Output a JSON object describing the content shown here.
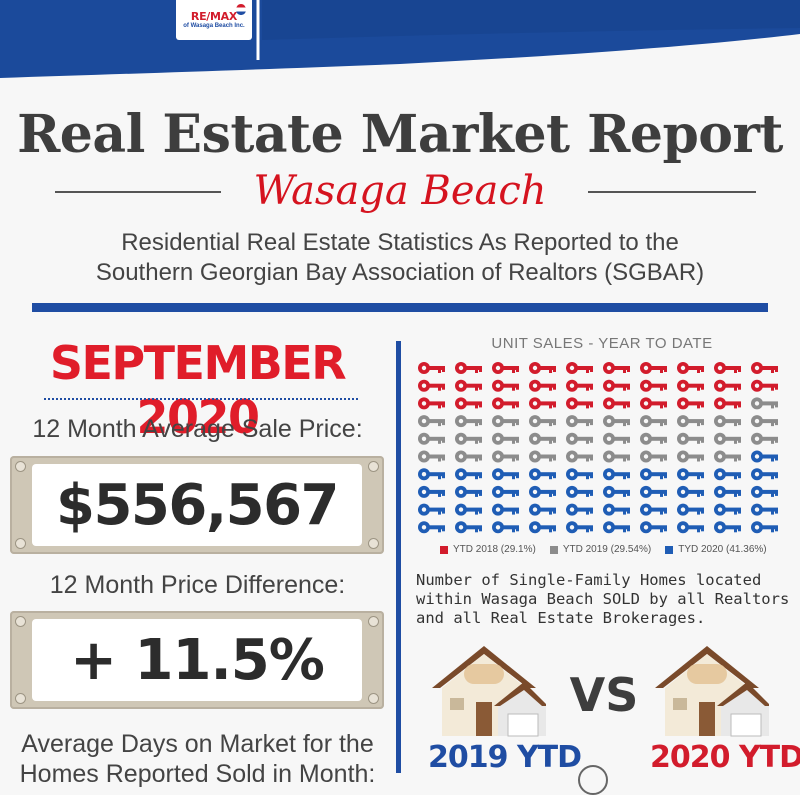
{
  "brand": {
    "logo_main": "RE/MAX",
    "logo_sub": "of Wasaga Beach Inc."
  },
  "header": {
    "title": "Real Estate Market Report",
    "subtitle": "Wasaga Beach",
    "description_line1": "Residential Real Estate Statistics As Reported to the",
    "description_line2": "Southern Georgian Bay Association of Realtors (SGBAR)"
  },
  "left": {
    "month": "SEPTEMBER 2020",
    "avg_price_label": "12 Month Average Sale Price:",
    "avg_price_value": "$556,567",
    "diff_label": "12 Month Price Difference:",
    "diff_value": "+ 11.5%",
    "days_label_line1": "Average Days on Market for the",
    "days_label_line2": "Homes Reported Sold in Month:"
  },
  "right": {
    "unit_sales_title": "UNIT SALES - YEAR TO DATE",
    "legend": [
      {
        "label": "YTD 2018 (29.1%)",
        "color": "#d21c2c"
      },
      {
        "label": "YTD 2019 (29.54%)",
        "color": "#8c8c8c"
      },
      {
        "label": "TYD 2020 (41.36%)",
        "color": "#1f5db5"
      }
    ],
    "note": "Number of Single-Family Homes located within Wasaga Beach SOLD by all Realtors and all Real Estate Brokerages.",
    "vs": "VS",
    "ytd_2019": "2019 YTD",
    "ytd_2020": "2020 YTD"
  },
  "chart_data": {
    "type": "icon-array",
    "title": "UNIT SALES - YEAR TO DATE",
    "rows": 10,
    "cols": 10,
    "series": [
      {
        "name": "YTD 2018",
        "percent": 29.1,
        "icons": 29
      },
      {
        "name": "YTD 2019",
        "percent": 29.54,
        "icons": 30
      },
      {
        "name": "TYD 2020",
        "percent": 41.36,
        "icons": 41
      }
    ]
  },
  "colors": {
    "red": "#d21c2c",
    "grey": "#8c8c8c",
    "blue": "#1f5db5",
    "navy": "#1f4da3"
  }
}
